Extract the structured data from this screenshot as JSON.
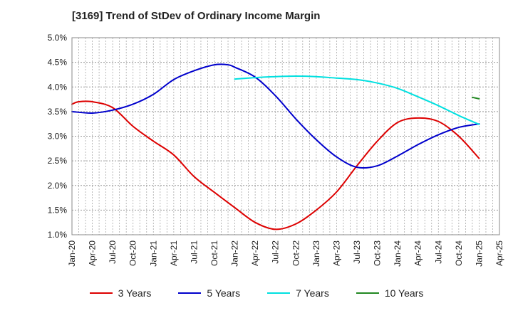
{
  "chart_data": {
    "type": "line",
    "title": "[3169]  Trend of StDev of Ordinary Income Margin",
    "y_ticks": [
      "1.0%",
      "1.5%",
      "2.0%",
      "2.5%",
      "3.0%",
      "3.5%",
      "4.0%",
      "4.5%",
      "5.0%"
    ],
    "x_ticks": [
      "Jan-20",
      "Apr-20",
      "Jul-20",
      "Oct-20",
      "Jan-21",
      "Apr-21",
      "Jul-21",
      "Oct-21",
      "Jan-22",
      "Apr-22",
      "Jul-22",
      "Oct-22",
      "Jan-23",
      "Apr-23",
      "Jul-23",
      "Oct-23",
      "Jan-24",
      "Apr-24",
      "Jul-24",
      "Oct-24",
      "Jan-25",
      "Apr-25"
    ],
    "ylim": [
      1.0,
      5.0
    ],
    "xlim": [
      "Jan-20",
      "Apr-25"
    ],
    "grid": true,
    "legend_position": "bottom",
    "series": [
      {
        "name": "3 Years",
        "color": "#dd0000",
        "points": [
          [
            "Jan-20",
            3.65
          ],
          [
            "Feb-20",
            3.7
          ],
          [
            "Apr-20",
            3.7
          ],
          [
            "Jul-20",
            3.58
          ],
          [
            "Oct-20",
            3.2
          ],
          [
            "Jan-21",
            2.9
          ],
          [
            "Apr-21",
            2.62
          ],
          [
            "Jul-21",
            2.18
          ],
          [
            "Oct-21",
            1.86
          ],
          [
            "Jan-22",
            1.55
          ],
          [
            "Apr-22",
            1.25
          ],
          [
            "Jul-22",
            1.11
          ],
          [
            "Oct-22",
            1.22
          ],
          [
            "Jan-23",
            1.5
          ],
          [
            "Apr-23",
            1.87
          ],
          [
            "Jul-23",
            2.4
          ],
          [
            "Oct-23",
            2.9
          ],
          [
            "Jan-24",
            3.28
          ],
          [
            "Apr-24",
            3.37
          ],
          [
            "Jul-24",
            3.3
          ],
          [
            "Oct-24",
            3.0
          ],
          [
            "Jan-25",
            2.55
          ]
        ]
      },
      {
        "name": "5 Years",
        "color": "#0000cc",
        "points": [
          [
            "Jan-20",
            3.5
          ],
          [
            "Apr-20",
            3.47
          ],
          [
            "Jul-20",
            3.53
          ],
          [
            "Oct-20",
            3.65
          ],
          [
            "Jan-21",
            3.85
          ],
          [
            "Apr-21",
            4.15
          ],
          [
            "Jul-21",
            4.33
          ],
          [
            "Oct-21",
            4.45
          ],
          [
            "Dec-21",
            4.45
          ],
          [
            "Jan-22",
            4.4
          ],
          [
            "Apr-22",
            4.2
          ],
          [
            "Jul-22",
            3.82
          ],
          [
            "Oct-22",
            3.35
          ],
          [
            "Jan-23",
            2.93
          ],
          [
            "Apr-23",
            2.58
          ],
          [
            "Jul-23",
            2.37
          ],
          [
            "Oct-23",
            2.4
          ],
          [
            "Jan-24",
            2.6
          ],
          [
            "Apr-24",
            2.83
          ],
          [
            "Jul-24",
            3.03
          ],
          [
            "Oct-24",
            3.18
          ],
          [
            "Jan-25",
            3.25
          ]
        ]
      },
      {
        "name": "7 Years",
        "color": "#00e0e0",
        "points": [
          [
            "Jan-22",
            4.16
          ],
          [
            "Apr-22",
            4.19
          ],
          [
            "Jul-22",
            4.21
          ],
          [
            "Oct-22",
            4.22
          ],
          [
            "Jan-23",
            4.21
          ],
          [
            "Apr-23",
            4.18
          ],
          [
            "Jul-23",
            4.15
          ],
          [
            "Oct-23",
            4.08
          ],
          [
            "Jan-24",
            3.97
          ],
          [
            "Apr-24",
            3.8
          ],
          [
            "Jul-24",
            3.62
          ],
          [
            "Oct-24",
            3.42
          ],
          [
            "Jan-25",
            3.24
          ]
        ]
      },
      {
        "name": "10 Years",
        "color": "#228822",
        "points": [
          [
            "Dec-24",
            3.79
          ],
          [
            "Jan-25",
            3.76
          ]
        ]
      }
    ]
  }
}
